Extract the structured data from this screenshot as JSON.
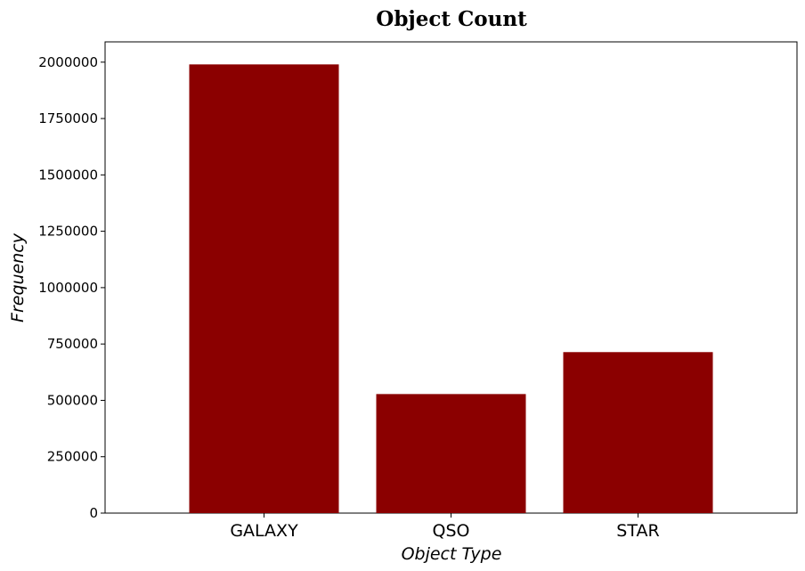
{
  "chart_data": {
    "type": "bar",
    "title": "Object Count",
    "xlabel": "Object Type",
    "ylabel": "Frequency",
    "categories": [
      "GALAXY",
      "QSO",
      "STAR"
    ],
    "values": [
      1990000,
      528000,
      714000
    ],
    "ylim": [
      0,
      2090000
    ],
    "yticks": [
      0,
      250000,
      500000,
      750000,
      1000000,
      1250000,
      1500000,
      1750000,
      2000000
    ],
    "ytick_labels": [
      "0",
      "250000",
      "500000",
      "750000",
      "1000000",
      "1250000",
      "1500000",
      "1750000",
      "2000000"
    ],
    "bar_color": "#8b0000",
    "grid": false,
    "legend": "none"
  }
}
